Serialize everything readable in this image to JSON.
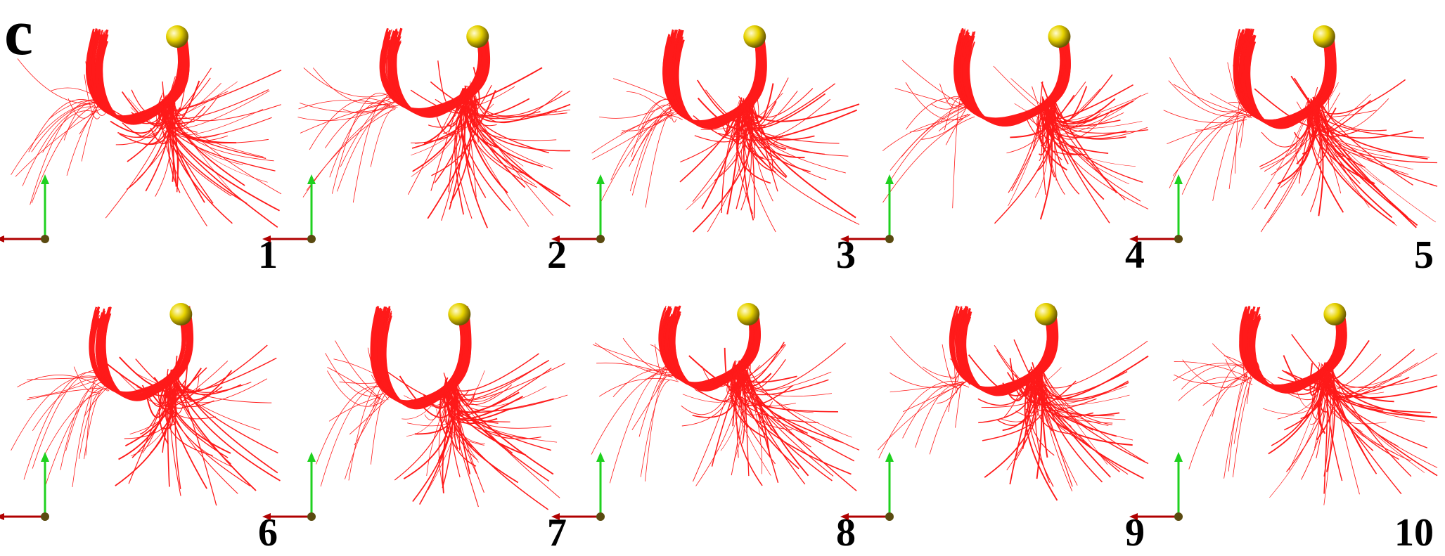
{
  "panel_label": "c",
  "colors": {
    "fiber": "#ff1a1a",
    "sphere": "#e8d400",
    "axis_x": "#b00000",
    "axis_y": "#1fd11f",
    "axis_origin": "#5a4a10"
  },
  "icons": {
    "seed_point": "yellow-sphere",
    "orientation": "xyz-axes-glyph"
  },
  "subjects": [
    {
      "id": "1"
    },
    {
      "id": "2"
    },
    {
      "id": "3"
    },
    {
      "id": "4"
    },
    {
      "id": "5"
    },
    {
      "id": "6"
    },
    {
      "id": "7"
    },
    {
      "id": "8"
    },
    {
      "id": "9"
    },
    {
      "id": "10"
    }
  ]
}
